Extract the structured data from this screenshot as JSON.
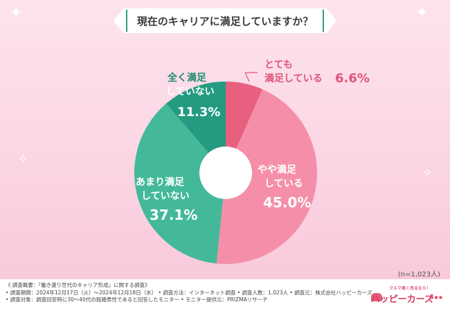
{
  "title": "現在のキャリアに満足していますか？",
  "sample_note": "(n=1,023人)",
  "footer": {
    "lines": [
      "《 調査概要：「働き盛り世代のキャリア形成」に関する調査》",
      "• 調査期間：2024年12月17日（火）〜2024年12月18日（水） • 調査方法：インターネット調査  • 調査人数：1,023人  • 調査元：株式会社ハッピーカーズ",
      "• 調査対象：調査回答時に30〜40代の既婚男性であると回答したモニター     • モニター提供元：PRIZMAリサーチ"
    ]
  },
  "logo": {
    "tagline": "クルマ高く売るなら！",
    "name": "ハッピーカーズ",
    "dots": "●●●"
  },
  "chart_data": {
    "type": "pie",
    "donut": true,
    "start": "top",
    "direction": "clockwise",
    "slices": [
      {
        "line1": "とても",
        "line2": "満足している",
        "value_label": "6.6%",
        "value": 6.6,
        "color": "#e8607f"
      },
      {
        "line1": "やや満足",
        "line2": "している",
        "value_label": "45.0%",
        "value": 45.0,
        "color": "#f58fa9"
      },
      {
        "line1": "あまり満足",
        "line2": "していない",
        "value_label": "37.1%",
        "value": 37.1,
        "color": "#43b99a"
      },
      {
        "line1": "全く満足",
        "line2": "していない",
        "value_label": "11.3%",
        "value": 11.3,
        "color": "#249b80"
      }
    ]
  }
}
